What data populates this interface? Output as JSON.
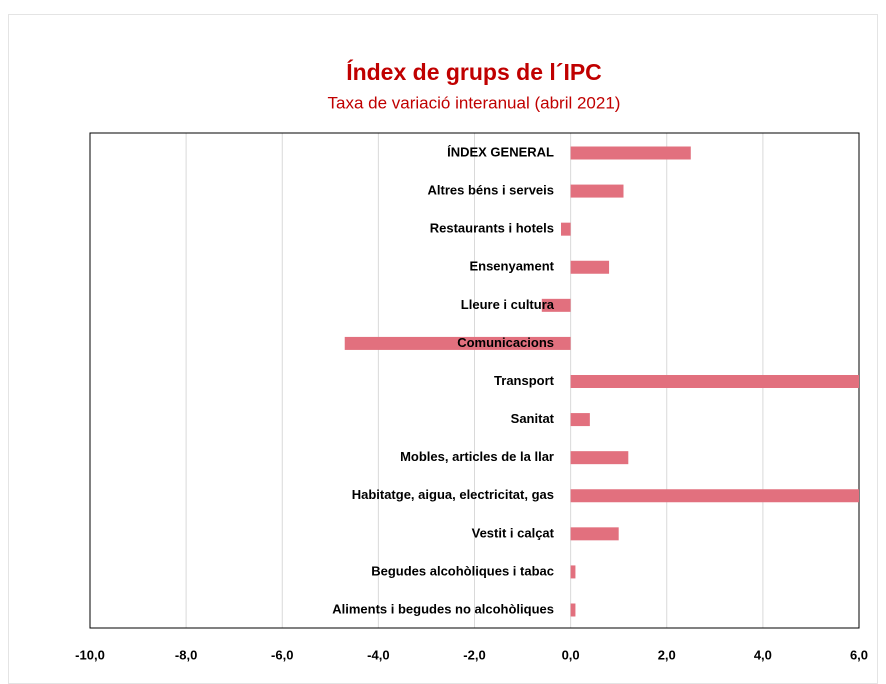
{
  "chart_data": {
    "type": "barh",
    "title": "Índex de grups de l´IPC",
    "subtitle": "Taxa de variació interanual (abril 2021)",
    "categories": [
      "ÍNDEX GENERAL",
      "Altres béns i serveis",
      "Restaurants i hotels",
      "Ensenyament",
      "Lleure i cultura",
      "Comunicacions",
      "Transport",
      "Sanitat",
      "Mobles, articles de la llar",
      "Habitatge, aigua, electricitat, gas",
      "Vestit i calçat",
      "Begudes alcohòliques i tabac",
      "Aliments i begudes no alcohòliques"
    ],
    "values": [
      2.5,
      1.1,
      -0.2,
      0.8,
      -0.6,
      -4.7,
      6,
      0.4,
      1.2,
      6,
      1.0,
      0.1,
      0.1
    ],
    "color": "#e2707e",
    "xlim": [
      -10,
      6
    ],
    "xticks": [
      {
        "value": -10,
        "label": "-10,0"
      },
      {
        "value": -8,
        "label": "-8,0"
      },
      {
        "value": -6,
        "label": "-6,0"
      },
      {
        "value": -4,
        "label": "-4,0"
      },
      {
        "value": -2,
        "label": "-2,0"
      },
      {
        "value": 0,
        "label": "0,0"
      },
      {
        "value": 2,
        "label": "2,0"
      },
      {
        "value": 4,
        "label": "4,0"
      },
      {
        "value": 6,
        "label": "6,0"
      }
    ],
    "grid": true
  }
}
